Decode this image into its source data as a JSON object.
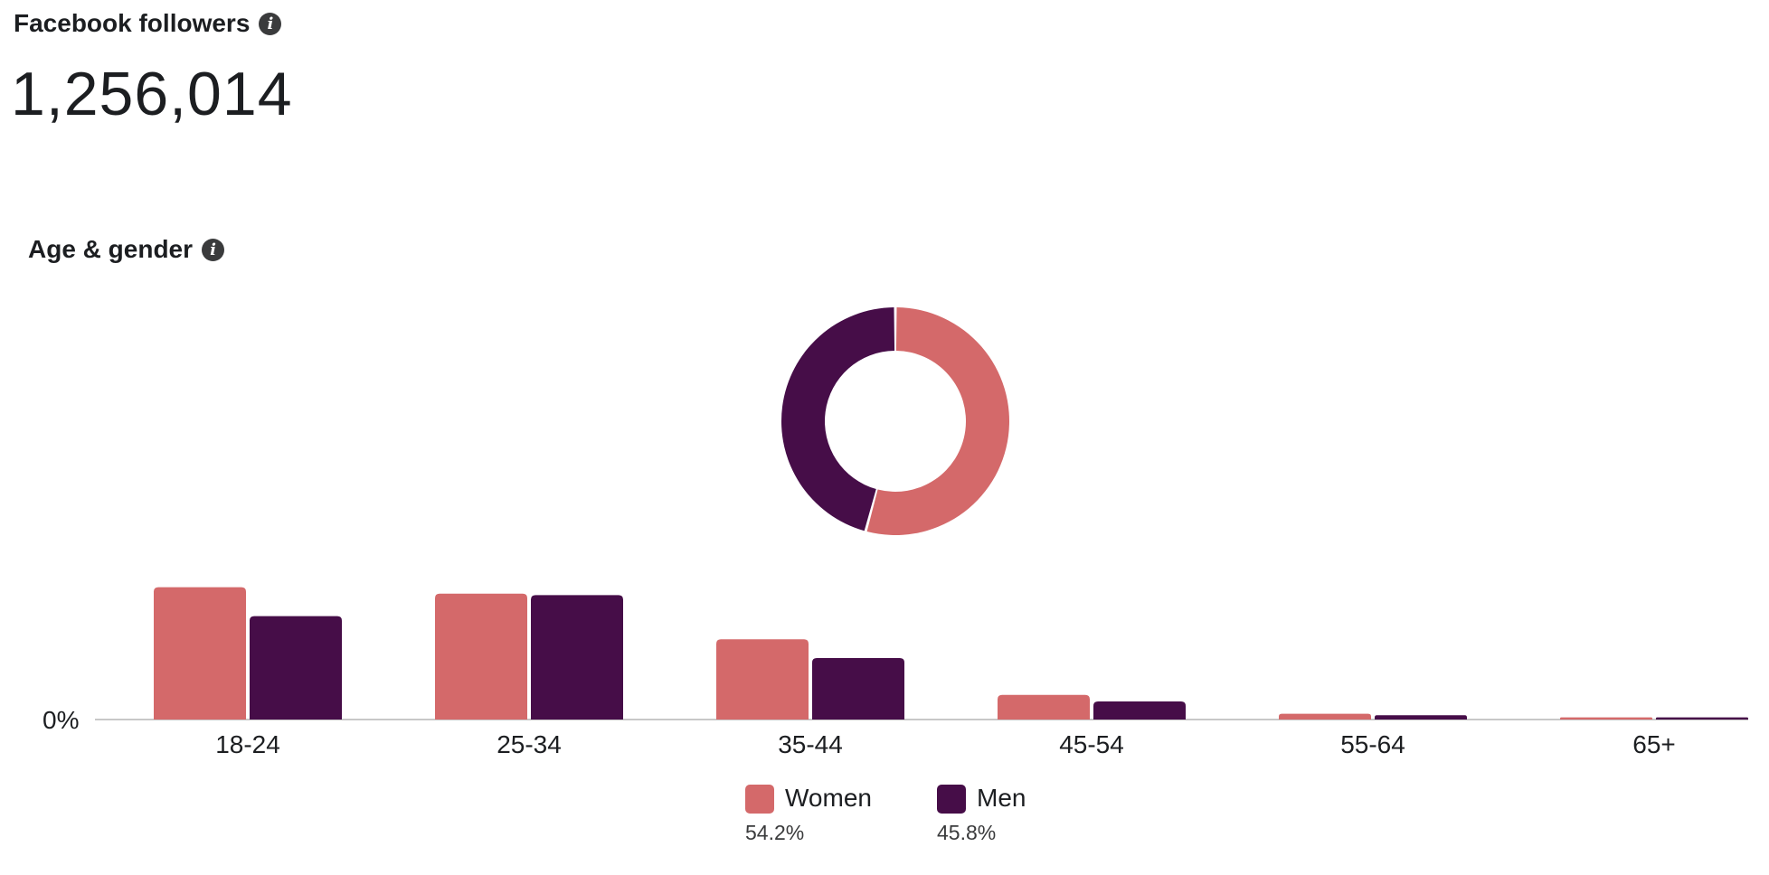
{
  "header": {
    "title": "Facebook followers",
    "info_icon": "info-icon",
    "followers_count": "1,256,014"
  },
  "age_gender": {
    "title": "Age & gender",
    "info_icon": "info-icon"
  },
  "colors": {
    "women": "#d4696a",
    "men": "#460d48",
    "axis": "#c8c8c8"
  },
  "chart_data": [
    {
      "type": "pie",
      "variant": "donut",
      "labels": [
        "Women",
        "Men"
      ],
      "values": [
        54.2,
        45.8
      ],
      "unit": "%"
    },
    {
      "type": "bar",
      "categories": [
        "18-24",
        "25-34",
        "35-44",
        "45-54",
        "55-64",
        "65+"
      ],
      "series": [
        {
          "name": "Women",
          "values": [
            18.3,
            17.4,
            11.1,
            3.4,
            0.8,
            0.3
          ]
        },
        {
          "name": "Men",
          "values": [
            14.3,
            17.2,
            8.5,
            2.5,
            0.6,
            0.3
          ]
        }
      ],
      "unit": "%",
      "y_tick_label": "0%",
      "ylim": [
        0,
        20
      ],
      "grid": false,
      "legend": [
        {
          "name": "Women",
          "percent": "54.2%"
        },
        {
          "name": "Men",
          "percent": "45.8%"
        }
      ],
      "legend_placement": "bottom-center"
    }
  ]
}
